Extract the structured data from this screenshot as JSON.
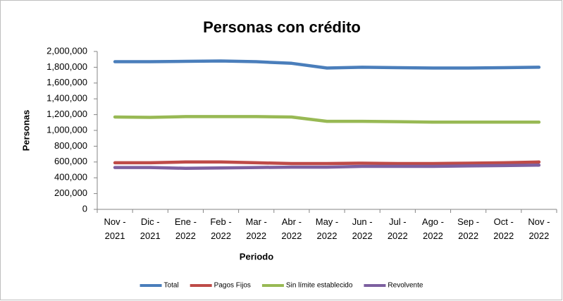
{
  "chart_data": {
    "type": "line",
    "title": "Personas con crédito",
    "x_label": "Periodo",
    "y_label": "Personas",
    "categories": [
      "Nov - 2021",
      "Dic - 2021",
      "Ene - 2022",
      "Feb - 2022",
      "Mar - 2022",
      "Abr - 2022",
      "May - 2022",
      "Jun - 2022",
      "Jul - 2022",
      "Ago - 2022",
      "Sep - 2022",
      "Oct - 2022",
      "Nov - 2022"
    ],
    "series": [
      {
        "name": "Total",
        "color": "#4a7ebb",
        "values": [
          1870000,
          1870000,
          1875000,
          1880000,
          1870000,
          1850000,
          1790000,
          1800000,
          1795000,
          1790000,
          1790000,
          1795000,
          1800000
        ]
      },
      {
        "name": "Pagos Fijos",
        "color": "#be4b48",
        "values": [
          590000,
          590000,
          600000,
          600000,
          590000,
          580000,
          580000,
          585000,
          580000,
          580000,
          585000,
          590000,
          600000
        ]
      },
      {
        "name": "Sin límite establecido",
        "color": "#98b954",
        "values": [
          1170000,
          1165000,
          1175000,
          1175000,
          1175000,
          1170000,
          1115000,
          1115000,
          1110000,
          1105000,
          1105000,
          1105000,
          1105000
        ]
      },
      {
        "name": "Revolvente",
        "color": "#7d60a0",
        "values": [
          530000,
          530000,
          520000,
          525000,
          530000,
          535000,
          535000,
          545000,
          545000,
          545000,
          550000,
          555000,
          560000
        ]
      }
    ],
    "ylim": [
      0,
      2000000
    ],
    "yticks": [
      0,
      {
        "value": 200000,
        "label": "200,000"
      },
      {
        "value": 400000,
        "label": "400,000"
      },
      {
        "value": 600000,
        "label": "600,000"
      },
      {
        "value": 800000,
        "label": "800,000"
      },
      {
        "value": 1000000,
        "label": "1,000,000"
      },
      {
        "value": 1200000,
        "label": "1,200,000"
      },
      {
        "value": 1400000,
        "label": "1,400,000"
      },
      {
        "value": 1600000,
        "label": "1,600,000"
      },
      {
        "value": 1800000,
        "label": "1,800,000"
      },
      {
        "value": 2000000,
        "label": "2,000,000"
      }
    ],
    "grid": false,
    "legend": "bottom"
  }
}
